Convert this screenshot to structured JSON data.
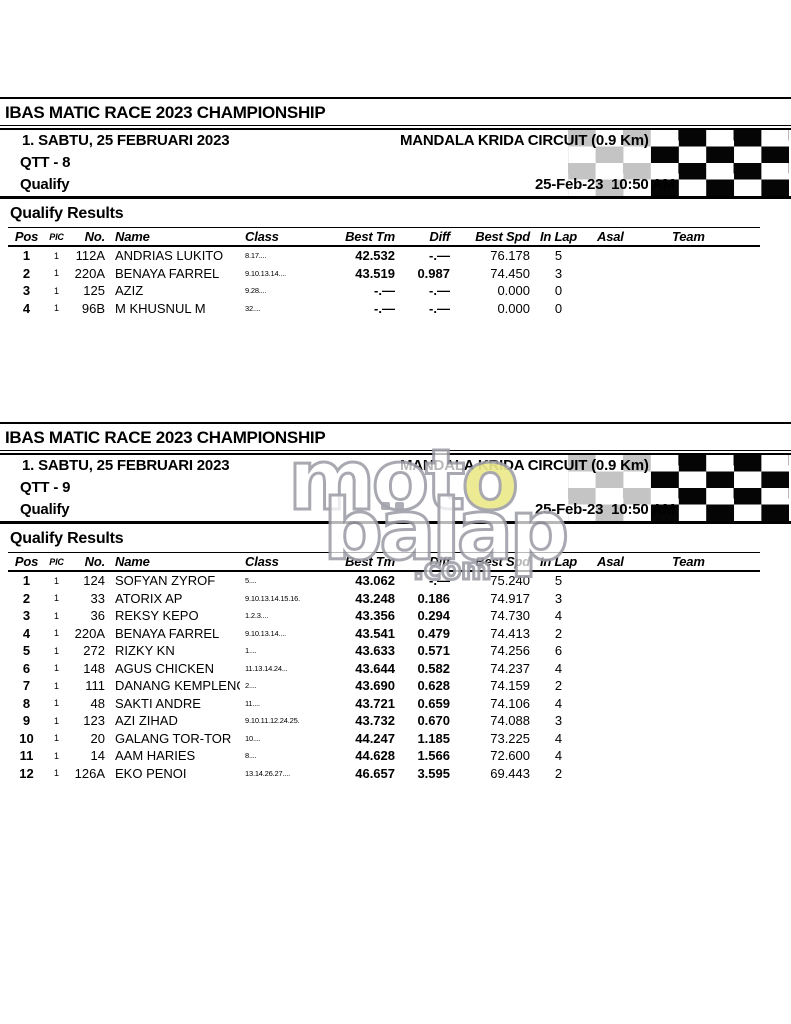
{
  "columns": [
    "Pos",
    "PIC",
    "No.",
    "Name",
    "Class",
    "Best Tm",
    "Diff",
    "Best Spd",
    "In Lap",
    "Asal",
    "Team"
  ],
  "colors": {
    "text": "#000000",
    "checker_black": "#050505",
    "checker_gray": "#c4c4c4",
    "watermark_outline": "#9c9ca6",
    "watermark_accent": "#ece98c"
  },
  "watermark": {
    "line1": "mot",
    "line1_accent": "o",
    "line2": "balap",
    "line3": ".com"
  },
  "sections": [
    {
      "championship": "IBAS MATIC RACE 2023 CHAMPIONSHIP",
      "event_line": "1. SABTU, 25 FEBRUARI 2023",
      "circuit": "MANDALA KRIDA CIRCUIT (0.9 Km)",
      "session": "QTT - 8",
      "session_type": "Qualify",
      "printed": "25-Feb-23  10:50 AM",
      "results_title": "Qualify Results",
      "rows": [
        {
          "pos": "1",
          "pic": "1",
          "no": "112A",
          "name": "ANDRIAS LUKITO",
          "class": "8.17....",
          "best_tm": "42.532",
          "diff": "-.—",
          "best_spd": "76.178",
          "in_lap": "5",
          "asal": "",
          "team": ""
        },
        {
          "pos": "2",
          "pic": "1",
          "no": "220A",
          "name": "BENAYA FARREL",
          "class": "9.10.13.14....",
          "best_tm": "43.519",
          "diff": "0.987",
          "best_spd": "74.450",
          "in_lap": "3",
          "asal": "",
          "team": ""
        },
        {
          "pos": "3",
          "pic": "1",
          "no": "125",
          "name": "AZIZ",
          "class": "9.28....",
          "best_tm": "-.—",
          "diff": "-.—",
          "best_spd": "0.000",
          "in_lap": "0",
          "asal": "",
          "team": ""
        },
        {
          "pos": "4",
          "pic": "1",
          "no": "96B",
          "name": "M KHUSNUL M",
          "class": "32....",
          "best_tm": "-.—",
          "diff": "-.—",
          "best_spd": "0.000",
          "in_lap": "0",
          "asal": "",
          "team": ""
        }
      ]
    },
    {
      "championship": "IBAS MATIC RACE 2023 CHAMPIONSHIP",
      "event_line": "1. SABTU, 25 FEBRUARI 2023",
      "circuit": "MANDALA KRIDA CIRCUIT (0.9 Km)",
      "session": "QTT - 9",
      "session_type": "Qualify",
      "printed": "25-Feb-23  10:50 AM",
      "results_title": "Qualify Results",
      "rows": [
        {
          "pos": "1",
          "pic": "1",
          "no": "124",
          "name": "SOFYAN ZYROF",
          "class": "5....",
          "best_tm": "43.062",
          "diff": "-.—",
          "best_spd": "75.240",
          "in_lap": "5",
          "asal": "",
          "team": ""
        },
        {
          "pos": "2",
          "pic": "1",
          "no": "33",
          "name": "ATORIX AP",
          "class": "9.10.13.14.15.16.",
          "best_tm": "43.248",
          "diff": "0.186",
          "best_spd": "74.917",
          "in_lap": "3",
          "asal": "",
          "team": ""
        },
        {
          "pos": "3",
          "pic": "1",
          "no": "36",
          "name": "REKSY KEPO",
          "class": "1.2.3....",
          "best_tm": "43.356",
          "diff": "0.294",
          "best_spd": "74.730",
          "in_lap": "4",
          "asal": "",
          "team": ""
        },
        {
          "pos": "4",
          "pic": "1",
          "no": "220A",
          "name": "BENAYA FARREL",
          "class": "9.10.13.14....",
          "best_tm": "43.541",
          "diff": "0.479",
          "best_spd": "74.413",
          "in_lap": "2",
          "asal": "",
          "team": ""
        },
        {
          "pos": "5",
          "pic": "1",
          "no": "272",
          "name": "RIZKY KN",
          "class": "1....",
          "best_tm": "43.633",
          "diff": "0.571",
          "best_spd": "74.256",
          "in_lap": "6",
          "asal": "",
          "team": ""
        },
        {
          "pos": "6",
          "pic": "1",
          "no": "148",
          "name": "AGUS CHICKEN",
          "class": "11.13.14.24...",
          "best_tm": "43.644",
          "diff": "0.582",
          "best_spd": "74.237",
          "in_lap": "4",
          "asal": "",
          "team": ""
        },
        {
          "pos": "7",
          "pic": "1",
          "no": "111",
          "name": "DANANG KEMPLENG",
          "class": "2....",
          "best_tm": "43.690",
          "diff": "0.628",
          "best_spd": "74.159",
          "in_lap": "2",
          "asal": "",
          "team": ""
        },
        {
          "pos": "8",
          "pic": "1",
          "no": "48",
          "name": "SAKTI ANDRE",
          "class": "11....",
          "best_tm": "43.721",
          "diff": "0.659",
          "best_spd": "74.106",
          "in_lap": "4",
          "asal": "",
          "team": ""
        },
        {
          "pos": "9",
          "pic": "1",
          "no": "123",
          "name": "AZI ZIHAD",
          "class": "9.10.11.12.24.25.",
          "best_tm": "43.732",
          "diff": "0.670",
          "best_spd": "74.088",
          "in_lap": "3",
          "asal": "",
          "team": ""
        },
        {
          "pos": "10",
          "pic": "1",
          "no": "20",
          "name": "GALANG TOR-TOR",
          "class": "10....",
          "best_tm": "44.247",
          "diff": "1.185",
          "best_spd": "73.225",
          "in_lap": "4",
          "asal": "",
          "team": ""
        },
        {
          "pos": "11",
          "pic": "1",
          "no": "14",
          "name": "AAM HARIES",
          "class": "8....",
          "best_tm": "44.628",
          "diff": "1.566",
          "best_spd": "72.600",
          "in_lap": "4",
          "asal": "",
          "team": ""
        },
        {
          "pos": "12",
          "pic": "1",
          "no": "126A",
          "name": "EKO PENOI",
          "class": "13.14.26.27....",
          "best_tm": "46.657",
          "diff": "3.595",
          "best_spd": "69.443",
          "in_lap": "2",
          "asal": "",
          "team": ""
        }
      ]
    }
  ]
}
